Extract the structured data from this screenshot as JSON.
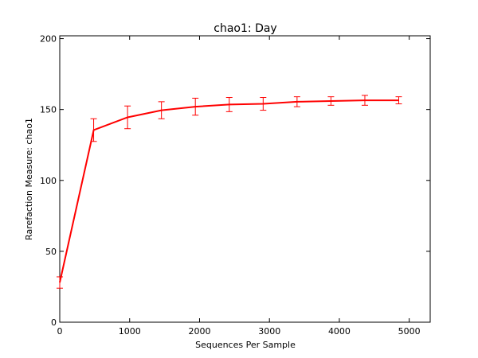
{
  "chart_data": {
    "type": "line",
    "title": "chao1: Day",
    "xlabel": "Sequences Per Sample",
    "ylabel": "Rarefaction Measure: chao1",
    "xlim": [
      0,
      5300
    ],
    "ylim": [
      0,
      202
    ],
    "xticks": [
      0,
      1000,
      2000,
      3000,
      4000,
      5000
    ],
    "yticks": [
      0,
      50,
      100,
      150,
      200
    ],
    "grid": false,
    "legend": "none",
    "series": [
      {
        "color": "#ff0000",
        "points": [
          {
            "x": 0,
            "y": 28,
            "err": 4
          },
          {
            "x": 485,
            "y": 135.5,
            "err": 8
          },
          {
            "x": 970,
            "y": 144.5,
            "err": 8
          },
          {
            "x": 1455,
            "y": 149.5,
            "err": 6
          },
          {
            "x": 1940,
            "y": 152,
            "err": 6
          },
          {
            "x": 2425,
            "y": 153.5,
            "err": 5
          },
          {
            "x": 2910,
            "y": 154,
            "err": 4.5
          },
          {
            "x": 3395,
            "y": 155.5,
            "err": 3.5
          },
          {
            "x": 3880,
            "y": 156,
            "err": 3
          },
          {
            "x": 4365,
            "y": 156.5,
            "err": 3.5
          },
          {
            "x": 4850,
            "y": 156.5,
            "err": 2.5
          }
        ]
      }
    ]
  }
}
